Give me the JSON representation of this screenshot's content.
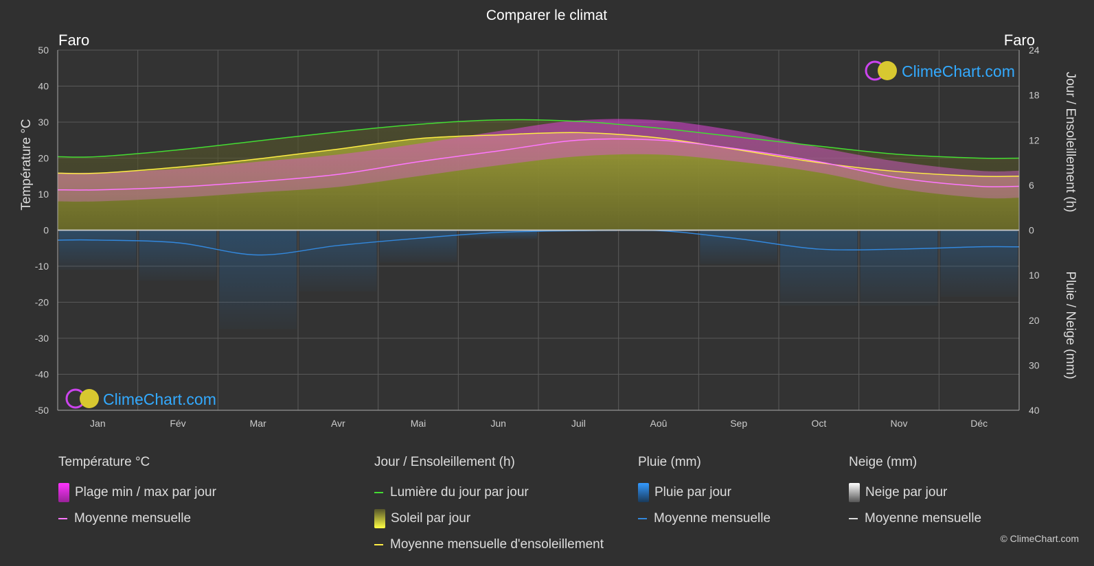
{
  "title": "Comparer le climat",
  "city_left": "Faro",
  "city_right": "Faro",
  "watermark": "ClimeChart.com",
  "copyright": "© ClimeChart.com",
  "colors": {
    "background": "#303030",
    "daylight": "#44dd33",
    "sunshine_line": "#ffee44",
    "sunshine_fill": "#9a9a2e",
    "temp_line": "#ff77ff",
    "temp_range": "#e040d8",
    "rain": "#3388dd",
    "snow": "#dddddd"
  },
  "legend": {
    "temperature": {
      "header": "Température °C",
      "range": "Plage min / max par jour",
      "mean": "Moyenne mensuelle"
    },
    "sun": {
      "header": "Jour / Ensoleillement (h)",
      "daylight": "Lumière du jour par jour",
      "sunshine": "Soleil par jour",
      "sunshine_mean": "Moyenne mensuelle d'ensoleillement"
    },
    "rain": {
      "header": "Pluie (mm)",
      "rain": "Pluie par jour",
      "mean": "Moyenne mensuelle"
    },
    "snow": {
      "header": "Neige (mm)",
      "snow": "Neige par jour",
      "mean": "Moyenne mensuelle"
    }
  },
  "chart_data": {
    "type": "line",
    "title": "Comparer le climat",
    "categories": [
      "Jan",
      "Fév",
      "Mar",
      "Avr",
      "Mai",
      "Jun",
      "Juil",
      "Aoû",
      "Sep",
      "Oct",
      "Nov",
      "Déc"
    ],
    "y_left": {
      "label": "Température °C",
      "ticks": [
        50,
        40,
        30,
        20,
        10,
        0,
        -10,
        -20,
        -30,
        -40,
        -50
      ],
      "ylim": [
        -50,
        50
      ]
    },
    "y_right_top": {
      "label": "Jour / Ensoleillement (h)",
      "ticks": [
        24,
        18,
        12,
        6,
        0
      ],
      "ylim": [
        0,
        24
      ]
    },
    "y_right_bottom": {
      "label": "Pluie / Neige (mm)",
      "ticks": [
        0,
        10,
        20,
        30,
        40
      ],
      "ylim": [
        0,
        40
      ]
    },
    "grid": true,
    "series": [
      {
        "name": "Lumière du jour par jour",
        "axis": "hours",
        "values": [
          9.8,
          10.7,
          11.9,
          13.1,
          14.1,
          14.7,
          14.5,
          13.6,
          12.4,
          11.2,
          10.1,
          9.6
        ]
      },
      {
        "name": "Moyenne mensuelle d'ensoleillement",
        "axis": "hours",
        "values": [
          7.6,
          8.4,
          9.5,
          10.8,
          12.2,
          12.7,
          13.0,
          12.3,
          10.7,
          9.0,
          7.8,
          7.2
        ]
      },
      {
        "name": "Moyenne mensuelle",
        "group": "temperature",
        "axis": "celsius",
        "values": [
          11.2,
          12.0,
          13.5,
          15.5,
          19.0,
          22.0,
          25.0,
          25.0,
          22.5,
          19.0,
          14.5,
          12.2
        ]
      },
      {
        "name": "Plage min / max par jour (min)",
        "group": "temperature",
        "axis": "celsius",
        "values": [
          8,
          9,
          10.5,
          12,
          15,
          18,
          20.5,
          21,
          19,
          16,
          11.5,
          9
        ]
      },
      {
        "name": "Plage min / max par jour (max)",
        "group": "temperature",
        "axis": "celsius",
        "values": [
          16,
          17,
          19,
          21,
          24,
          27.5,
          30.5,
          30.5,
          27.5,
          23,
          19,
          16.5
        ]
      },
      {
        "name": "Moyenne mensuelle",
        "group": "rain",
        "axis": "mm",
        "values": [
          2.2,
          2.8,
          5.5,
          3.4,
          1.8,
          0.5,
          0.1,
          0.1,
          1.9,
          4.2,
          4.2,
          3.7
        ]
      },
      {
        "name": "Moyenne mensuelle",
        "group": "snow",
        "axis": "mm",
        "values": [
          0,
          0,
          0,
          0,
          0,
          0,
          0,
          0,
          0,
          0,
          0,
          0
        ]
      }
    ]
  }
}
